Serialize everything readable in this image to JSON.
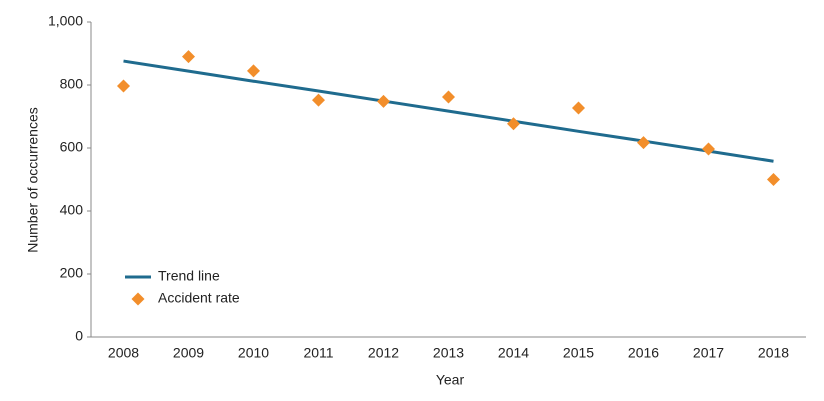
{
  "chart_data": {
    "type": "line",
    "x_label": "Year",
    "y_label": "Number of occurrences",
    "categories": [
      "2008",
      "2009",
      "2010",
      "2011",
      "2012",
      "2013",
      "2014",
      "2015",
      "2016",
      "2017",
      "2018"
    ],
    "series": [
      {
        "name": "Trend line",
        "type": "line",
        "color": "#1f6b8e",
        "values": [
          876,
          844,
          812,
          781,
          749,
          717,
          685,
          653,
          622,
          590,
          558
        ]
      },
      {
        "name": "Accident rate",
        "type": "scatter",
        "color": "#f28e2b",
        "values": [
          797,
          890,
          845,
          752,
          748,
          762,
          677,
          727,
          617,
          597,
          500
        ]
      }
    ],
    "ylim": [
      0,
      1000
    ],
    "yticks": [
      0,
      200,
      400,
      600,
      800,
      {
        "value": 1000,
        "label": "1,000"
      }
    ],
    "grid": false,
    "legend": "lower left"
  }
}
